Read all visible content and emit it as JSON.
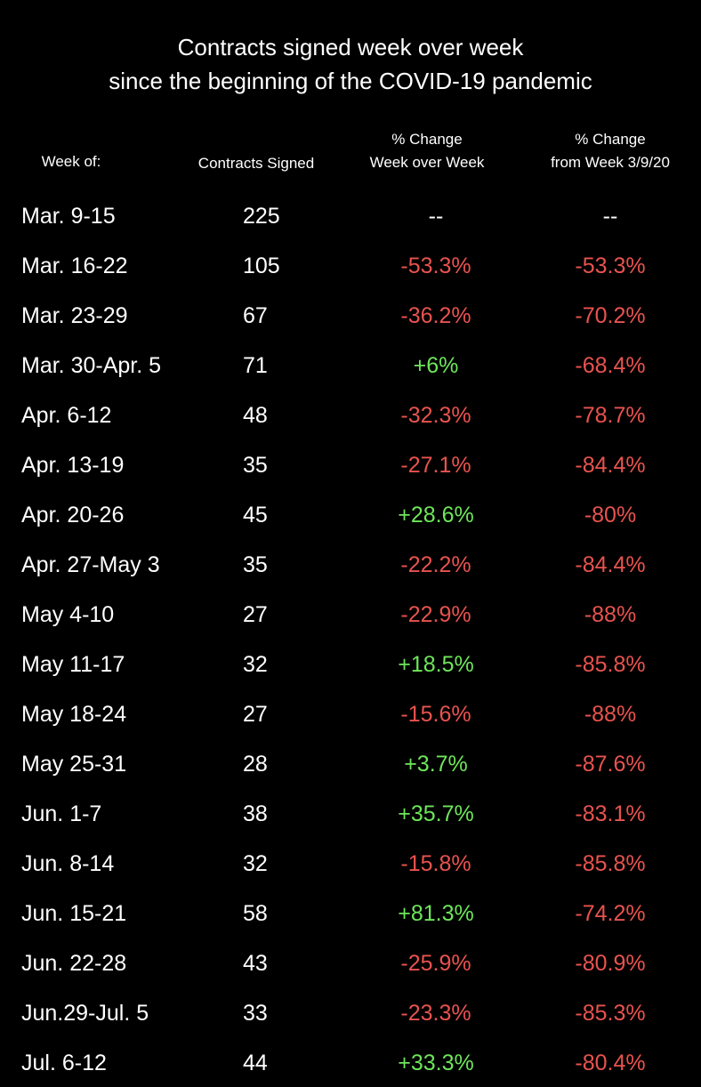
{
  "chart_data": {
    "type": "table",
    "title": [
      "Contracts signed week over week",
      "since the beginning of the COVID-19 pandemic"
    ],
    "columns": [
      "Week of:",
      "Contracts Signed",
      "% Change\nWeek over Week",
      "% Change\nfrom Week 3/9/20"
    ],
    "colors": {
      "text": "#ffffff",
      "negative": "#e8534f",
      "positive": "#6ee65a",
      "background": "#000000"
    },
    "rows": [
      [
        "Mar. 9-15",
        "225",
        "--",
        "--"
      ],
      [
        "Mar. 16-22",
        "105",
        "-53.3%",
        "-53.3%"
      ],
      [
        "Mar. 23-29",
        "67",
        "-36.2%",
        "-70.2%"
      ],
      [
        "Mar. 30-Apr. 5",
        "71",
        "+6%",
        "-68.4%"
      ],
      [
        "Apr. 6-12",
        "48",
        "-32.3%",
        "-78.7%"
      ],
      [
        "Apr. 13-19",
        "35",
        "-27.1%",
        "-84.4%"
      ],
      [
        "Apr. 20-26",
        "45",
        "+28.6%",
        "-80%"
      ],
      [
        "Apr. 27-May 3",
        "35",
        "-22.2%",
        "-84.4%"
      ],
      [
        "May 4-10",
        "27",
        "-22.9%",
        "-88%"
      ],
      [
        "May 11-17",
        "32",
        "+18.5%",
        "-85.8%"
      ],
      [
        "May 18-24",
        "27",
        "-15.6%",
        "-88%"
      ],
      [
        "May 25-31",
        "28",
        "+3.7%",
        "-87.6%"
      ],
      [
        "Jun. 1-7",
        "38",
        "+35.7%",
        "-83.1%"
      ],
      [
        "Jun. 8-14",
        "32",
        "-15.8%",
        "-85.8%"
      ],
      [
        "Jun. 15-21",
        "58",
        "+81.3%",
        "-74.2%"
      ],
      [
        "Jun. 22-28",
        "43",
        "-25.9%",
        "-80.9%"
      ],
      [
        "Jun.29-Jul. 5",
        "33",
        "-23.3%",
        "-85.3%"
      ],
      [
        "Jul. 6-12",
        "44",
        "+33.3%",
        "-80.4%"
      ]
    ]
  }
}
